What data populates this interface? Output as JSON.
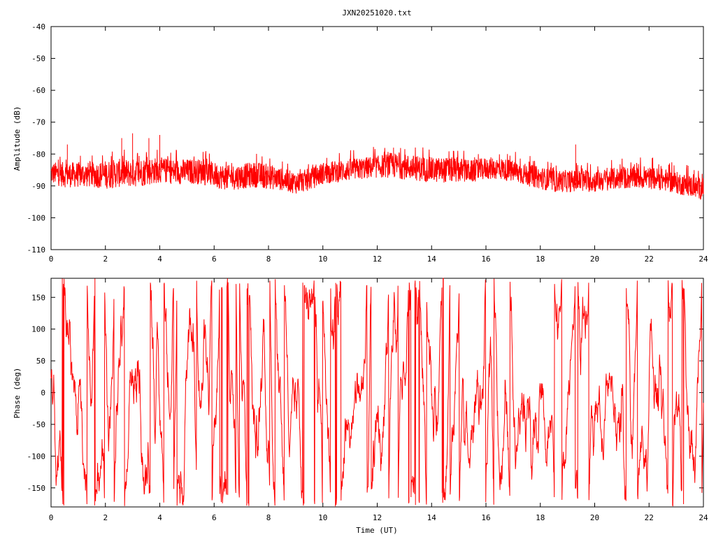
{
  "chart_data": {
    "title": "JXN20251020.txt",
    "xlabel": "Time (UT)",
    "xlim": [
      0,
      24
    ],
    "xticks": [
      "0",
      "2",
      "4",
      "6",
      "8",
      "10",
      "12",
      "14",
      "16",
      "18",
      "20",
      "22",
      "24"
    ],
    "panels": [
      {
        "type": "line",
        "ylabel": "Amplitude (dB)",
        "ylim": [
          -110,
          -40
        ],
        "yticks": [
          "-40",
          "-50",
          "-60",
          "-70",
          "-80",
          "-90",
          "-100",
          "-110"
        ],
        "color": "#ff0000",
        "series": [
          {
            "kind": "envelope",
            "x": [
              0,
              0.5,
              1,
              1.5,
              2,
              2.5,
              3,
              3.5,
              4,
              4.5,
              5,
              5.5,
              6,
              6.5,
              7,
              7.5,
              8,
              8.5,
              9,
              9.5,
              10,
              10.5,
              11,
              11.5,
              12,
              12.5,
              13,
              13.5,
              14,
              14.5,
              15,
              15.5,
              16,
              16.5,
              17,
              17.5,
              18,
              18.5,
              19,
              19.5,
              20,
              20.5,
              21,
              21.5,
              22,
              22.5,
              23,
              23.5,
              24
            ],
            "mean": [
              -86,
              -86.5,
              -86.5,
              -86.5,
              -86.5,
              -86,
              -86,
              -85.5,
              -85,
              -85.5,
              -85.5,
              -85.5,
              -86.5,
              -87.5,
              -87,
              -86.5,
              -87,
              -88,
              -89,
              -88,
              -86,
              -85.5,
              -85,
              -84.5,
              -84,
              -83.5,
              -84,
              -84.5,
              -85,
              -85,
              -85,
              -85.5,
              -84.5,
              -84.5,
              -85.5,
              -86.5,
              -87.5,
              -88.5,
              -88.5,
              -88.5,
              -88.5,
              -88,
              -87.5,
              -87.5,
              -87.5,
              -88,
              -89,
              -90,
              -91
            ],
            "spread": [
              3.5,
              4,
              4,
              4,
              4.5,
              4.5,
              4.5,
              4.5,
              4,
              4,
              4,
              4,
              4,
              4,
              4,
              4,
              4,
              3.5,
              3.5,
              3.5,
              3.5,
              3.5,
              3.5,
              3.5,
              3.5,
              4,
              4,
              4,
              4,
              4,
              4,
              3.5,
              3.5,
              3.5,
              3.5,
              3.5,
              3.5,
              3.5,
              3.5,
              3.5,
              3.5,
              3.5,
              3.5,
              3.5,
              3.5,
              3.5,
              3.5,
              3.5,
              3.5
            ],
            "peaks": [
              {
                "x": 0.6,
                "y": -77
              },
              {
                "x": 2.6,
                "y": -75
              },
              {
                "x": 3.0,
                "y": -73.5
              },
              {
                "x": 3.6,
                "y": -75
              },
              {
                "x": 4.0,
                "y": -74
              },
              {
                "x": 12.6,
                "y": -78
              },
              {
                "x": 14.8,
                "y": -79
              },
              {
                "x": 19.3,
                "y": -77
              }
            ]
          }
        ]
      },
      {
        "type": "line",
        "ylabel": "Phase (deg)",
        "ylim": [
          -180,
          180
        ],
        "yticks": [
          "150",
          "100",
          "50",
          "0",
          "-50",
          "-100",
          "-150"
        ],
        "ytick_values": [
          150,
          100,
          50,
          0,
          -50,
          -100,
          -150
        ],
        "color": "#ff0000",
        "series": [
          {
            "kind": "wrapped-phase",
            "x_range": [
              0,
              24
            ],
            "y_range": [
              -180,
              180
            ]
          }
        ]
      }
    ]
  }
}
